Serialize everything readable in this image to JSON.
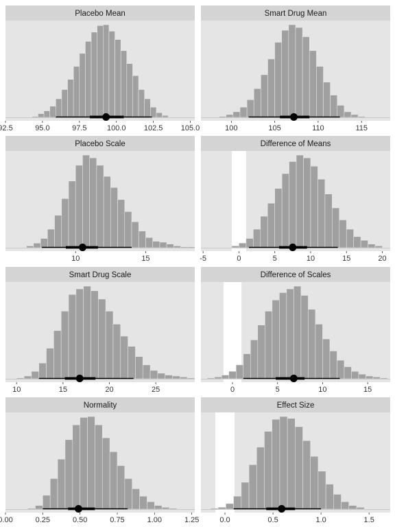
{
  "colors": {
    "panel_bg": "#e5e5e5",
    "strip_bg": "#d4d4d4",
    "bar_fill": "#a0a0a0",
    "bar_edge": "#e5e5e5",
    "point": "#000000",
    "rope": "#ffffff"
  },
  "chart_data": [
    {
      "type": "bar",
      "title": "Placebo Mean",
      "xlim": [
        92.5,
        105.3
      ],
      "ticks": [
        92.5,
        95.0,
        97.5,
        100.0,
        102.5,
        105.0
      ],
      "tick_labels": [
        "92.5",
        "95.0",
        "97.5",
        "100.0",
        "102.5",
        "105.0"
      ],
      "bins": {
        "start": 94.3,
        "width": 0.4,
        "heights": [
          0.01,
          0.04,
          0.07,
          0.12,
          0.2,
          0.3,
          0.41,
          0.55,
          0.69,
          0.82,
          0.92,
          0.99,
          1.0,
          0.93,
          0.84,
          0.72,
          0.58,
          0.45,
          0.3,
          0.2,
          0.11,
          0.05,
          0.02
        ]
      },
      "interval": {
        "point": 99.3,
        "inner": [
          98.2,
          100.5
        ],
        "outer": [
          95.9,
          102.4
        ]
      },
      "rope": null
    },
    {
      "type": "bar",
      "title": "Smart Drug Mean",
      "xlim": [
        96.5,
        118.3
      ],
      "ticks": [
        100,
        105,
        110,
        115
      ],
      "tick_labels": [
        "100",
        "105",
        "110",
        "115"
      ],
      "bins": {
        "start": 98.6,
        "width": 0.8,
        "heights": [
          0.01,
          0.03,
          0.06,
          0.11,
          0.19,
          0.31,
          0.46,
          0.63,
          0.81,
          0.94,
          1.0,
          0.97,
          0.87,
          0.72,
          0.55,
          0.38,
          0.24,
          0.13,
          0.06,
          0.03,
          0.01
        ]
      },
      "interval": {
        "point": 107.2,
        "inner": [
          105.6,
          109.0
        ],
        "outer": [
          102.0,
          112.5
        ]
      },
      "rope": null
    },
    {
      "type": "bar",
      "title": "Placebo Scale",
      "xlim": [
        5.0,
        18.5
      ],
      "ticks": [
        10,
        15
      ],
      "tick_labels": [
        "10",
        "15"
      ],
      "bins": {
        "start": 6.5,
        "width": 0.5,
        "heights": [
          0.02,
          0.05,
          0.1,
          0.2,
          0.35,
          0.53,
          0.72,
          0.89,
          1.0,
          0.97,
          0.89,
          0.77,
          0.65,
          0.52,
          0.39,
          0.28,
          0.18,
          0.11,
          0.07,
          0.06,
          0.04,
          0.02,
          0.01,
          0.01
        ]
      },
      "interval": {
        "point": 10.5,
        "inner": [
          9.3,
          11.6
        ],
        "outer": [
          7.6,
          14.0
        ]
      },
      "rope": null
    },
    {
      "type": "bar",
      "title": "Difference of Means",
      "xlim": [
        -5.3,
        21.1
      ],
      "ticks": [
        -5,
        0,
        5,
        10,
        15,
        20
      ],
      "tick_labels": [
        "-5",
        "0",
        "5",
        "10",
        "15",
        "20"
      ],
      "bins": {
        "start": -1.0,
        "width": 1.0,
        "heights": [
          0.02,
          0.05,
          0.1,
          0.2,
          0.34,
          0.48,
          0.64,
          0.8,
          0.93,
          1.0,
          0.97,
          0.88,
          0.74,
          0.58,
          0.43,
          0.3,
          0.2,
          0.12,
          0.08,
          0.04,
          0.02
        ]
      },
      "interval": {
        "point": 7.5,
        "inner": [
          5.6,
          9.5
        ],
        "outer": [
          1.4,
          13.8
        ]
      },
      "rope": [
        -1.0,
        1.0
      ]
    },
    {
      "type": "bar",
      "title": "Smart Drug Scale",
      "xlim": [
        8.8,
        29.2
      ],
      "ticks": [
        10,
        15,
        20,
        25
      ],
      "tick_labels": [
        "10",
        "15",
        "20",
        "25"
      ],
      "bins": {
        "start": 10.0,
        "width": 0.8,
        "heights": [
          0.01,
          0.03,
          0.08,
          0.17,
          0.33,
          0.52,
          0.73,
          0.91,
          0.97,
          1.0,
          0.95,
          0.86,
          0.73,
          0.59,
          0.46,
          0.35,
          0.24,
          0.15,
          0.09,
          0.06,
          0.04,
          0.03,
          0.02,
          0.01,
          0.01
        ]
      },
      "interval": {
        "point": 16.8,
        "inner": [
          15.2,
          18.5
        ],
        "outer": [
          12.4,
          22.6
        ]
      },
      "rope": null
    },
    {
      "type": "bar",
      "title": "Difference of Scales",
      "xlim": [
        -3.5,
        17.5
      ],
      "ticks": [
        0,
        5,
        10,
        15
      ],
      "tick_labels": [
        "0",
        "5",
        "10",
        "15"
      ],
      "bins": {
        "start": -2.8,
        "width": 0.8,
        "heights": [
          0.01,
          0.02,
          0.04,
          0.08,
          0.15,
          0.27,
          0.42,
          0.58,
          0.73,
          0.85,
          0.93,
          0.97,
          1.0,
          0.9,
          0.75,
          0.59,
          0.43,
          0.3,
          0.2,
          0.13,
          0.08,
          0.05,
          0.03,
          0.02,
          0.01
        ]
      },
      "interval": {
        "point": 6.8,
        "inner": [
          4.8,
          8.0
        ],
        "outer": [
          1.2,
          11.9
        ]
      },
      "rope": [
        -1.0,
        1.0
      ]
    },
    {
      "type": "bar",
      "title": "Normality",
      "xlim": [
        0.0,
        1.27
      ],
      "ticks": [
        0.0,
        0.25,
        0.5,
        0.75,
        1.0,
        1.25
      ],
      "tick_labels": [
        "0.00",
        "0.25",
        "0.50",
        "0.75",
        "1.00",
        "1.25"
      ],
      "bins": {
        "start": 0.15,
        "width": 0.05,
        "heights": [
          0.01,
          0.04,
          0.15,
          0.33,
          0.54,
          0.75,
          0.91,
          0.99,
          1.0,
          0.91,
          0.77,
          0.62,
          0.47,
          0.33,
          0.22,
          0.14,
          0.08,
          0.04,
          0.02,
          0.01
        ]
      },
      "interval": {
        "point": 0.49,
        "inner": [
          0.42,
          0.6
        ],
        "outer": [
          0.25,
          0.82
        ]
      },
      "rope": null
    },
    {
      "type": "bar",
      "title": "Effect Size",
      "xlim": [
        -0.25,
        1.72
      ],
      "ticks": [
        0.0,
        0.5,
        1.0,
        1.5
      ],
      "tick_labels": [
        "0.0",
        "0.5",
        "1.0",
        "1.5"
      ],
      "bins": {
        "start": -0.15,
        "width": 0.08,
        "heights": [
          0.01,
          0.02,
          0.06,
          0.14,
          0.29,
          0.48,
          0.67,
          0.84,
          0.97,
          1.0,
          0.98,
          0.89,
          0.74,
          0.57,
          0.41,
          0.27,
          0.16,
          0.08,
          0.04,
          0.02
        ]
      },
      "interval": {
        "point": 0.59,
        "inner": [
          0.43,
          0.73
        ],
        "outer": [
          0.09,
          1.0
        ]
      },
      "rope": [
        -0.1,
        0.1
      ]
    }
  ]
}
